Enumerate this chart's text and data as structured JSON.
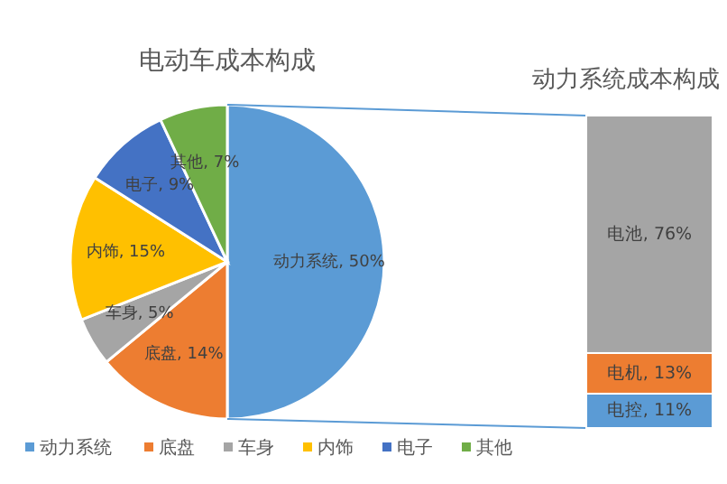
{
  "chart_data": [
    {
      "type": "pie",
      "title": "电动车成本构成",
      "categories": [
        "动力系统",
        "底盘",
        "车身",
        "内饰",
        "电子",
        "其他"
      ],
      "values": [
        50,
        14,
        5,
        15,
        9,
        7
      ],
      "colors": [
        "#5b9bd5",
        "#ed7d31",
        "#a5a5a5",
        "#ffc000",
        "#4472c4",
        "#70ad47"
      ],
      "value_labels": [
        "动力系统, 50%",
        "底盘, 14%",
        "车身, 5%",
        "内饰, 15%",
        "电子, 9%",
        "其他, 7%"
      ],
      "legend": "bottom"
    },
    {
      "type": "bar",
      "title": "动力系统成本构成",
      "stacked": true,
      "categories": [
        null
      ],
      "series": [
        {
          "color": "#5b9bd5",
          "values": [
            11
          ],
          "value_labels": [
            "电控, 11%"
          ]
        },
        {
          "color": "#ed7d31",
          "values": [
            13
          ],
          "value_labels": [
            "电机, 13%"
          ]
        },
        {
          "color": "#a5a5a5",
          "values": [
            76
          ],
          "value_labels": [
            "电池,  76%"
          ]
        }
      ]
    }
  ]
}
